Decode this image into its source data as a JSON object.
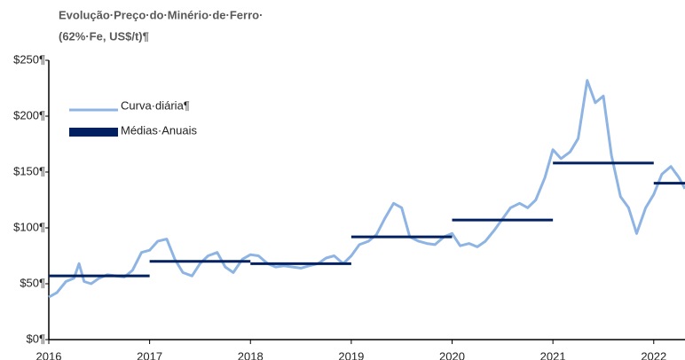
{
  "chart_data": {
    "type": "line",
    "title": "Evolução·Preço·do·Minério·de·Ferro·",
    "subtitle": "(62%·Fe, US$/t)¶",
    "xlim": [
      2016,
      2022.31
    ],
    "xticks": [
      2016,
      2017,
      2018,
      2019,
      2020,
      2021,
      2022
    ],
    "ylim": [
      0,
      250
    ],
    "yticks": [
      {
        "value": 0,
        "label": "$0¶"
      },
      {
        "value": 50,
        "label": "$50¶"
      },
      {
        "value": 100,
        "label": "$100¶"
      },
      {
        "value": 150,
        "label": "$150¶"
      },
      {
        "value": 200,
        "label": "$200¶"
      },
      {
        "value": 250,
        "label": "$250¶"
      }
    ],
    "legend": "upper left",
    "series": [
      {
        "name": "Curva·diária¶",
        "color": "#8eb4e3",
        "x": [
          2016.0,
          2016.08,
          2016.17,
          2016.25,
          2016.3,
          2016.35,
          2016.42,
          2016.5,
          2016.58,
          2016.67,
          2016.75,
          2016.83,
          2016.92,
          2017.0,
          2017.08,
          2017.17,
          2017.25,
          2017.33,
          2017.42,
          2017.5,
          2017.58,
          2017.67,
          2017.75,
          2017.83,
          2017.92,
          2018.0,
          2018.08,
          2018.17,
          2018.25,
          2018.33,
          2018.42,
          2018.5,
          2018.58,
          2018.67,
          2018.75,
          2018.83,
          2018.92,
          2019.0,
          2019.08,
          2019.17,
          2019.25,
          2019.33,
          2019.42,
          2019.5,
          2019.58,
          2019.67,
          2019.75,
          2019.83,
          2019.92,
          2020.0,
          2020.08,
          2020.17,
          2020.25,
          2020.33,
          2020.42,
          2020.5,
          2020.58,
          2020.67,
          2020.75,
          2020.83,
          2020.92,
          2021.0,
          2021.08,
          2021.17,
          2021.25,
          2021.34,
          2021.42,
          2021.5,
          2021.58,
          2021.67,
          2021.75,
          2021.83,
          2021.92,
          2022.0,
          2022.08,
          2022.17,
          2022.25,
          2022.31
        ],
        "values": [
          38,
          42,
          52,
          55,
          68,
          52,
          50,
          55,
          58,
          57,
          56,
          62,
          78,
          80,
          88,
          90,
          72,
          60,
          57,
          68,
          75,
          78,
          65,
          60,
          72,
          76,
          75,
          68,
          65,
          66,
          65,
          64,
          66,
          68,
          73,
          75,
          68,
          75,
          85,
          88,
          94,
          108,
          122,
          118,
          92,
          88,
          86,
          85,
          92,
          95,
          84,
          86,
          83,
          88,
          98,
          108,
          118,
          122,
          118,
          125,
          145,
          170,
          162,
          168,
          180,
          232,
          212,
          218,
          165,
          128,
          118,
          95,
          118,
          130,
          148,
          155,
          145,
          135
        ]
      },
      {
        "name": "Médias·Anuais",
        "color": "#002060",
        "x": [
          2016,
          2017,
          2018,
          2019,
          2020,
          2021,
          2022
        ],
        "values": [
          57,
          70,
          68,
          92,
          107,
          158,
          140
        ]
      }
    ]
  }
}
